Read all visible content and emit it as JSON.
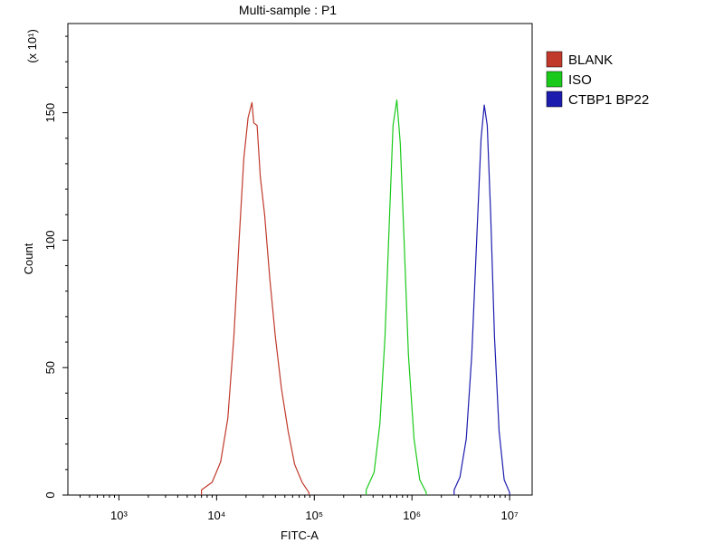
{
  "chart_data": {
    "type": "area",
    "title": "Multi-sample : P1",
    "xlabel": "FITC-A",
    "ylabel": "Count",
    "y_multiplier": "(x 10¹)",
    "x_scale": "log",
    "xlim": [
      300,
      17000000
    ],
    "ylim": [
      0,
      185
    ],
    "x_ticks": [
      {
        "label": "10³",
        "value": 1000
      },
      {
        "label": "10⁴",
        "value": 10000
      },
      {
        "label": "10⁵",
        "value": 100000
      },
      {
        "label": "10⁶",
        "value": 1000000
      },
      {
        "label": "10⁷",
        "value": 10000000
      }
    ],
    "y_ticks": [
      0,
      50,
      100,
      150
    ],
    "legend_position": "top-right",
    "series": [
      {
        "name": "BLANK",
        "color": "#c0392b",
        "x": [
          7000,
          9000,
          11000,
          13000,
          15000,
          17000,
          19000,
          21000,
          23000,
          24000,
          26000,
          28000,
          31000,
          35000,
          40000,
          46000,
          54000,
          63000,
          75000,
          88000
        ],
        "y": [
          2,
          5,
          13,
          30,
          62,
          100,
          132,
          148,
          154,
          146,
          145,
          125,
          110,
          85,
          62,
          42,
          25,
          12,
          5,
          1
        ]
      },
      {
        "name": "ISO",
        "color": "#1aca1a",
        "x": [
          340000,
          410000,
          470000,
          530000,
          590000,
          640000,
          700000,
          760000,
          830000,
          920000,
          1050000,
          1200000,
          1400000
        ],
        "y": [
          2,
          9,
          28,
          62,
          110,
          145,
          155,
          138,
          100,
          55,
          22,
          6,
          1
        ]
      },
      {
        "name": "CTBP1 BP22",
        "color": "#1c1cae",
        "x": [
          2700000,
          3100000,
          3600000,
          4100000,
          4600000,
          5100000,
          5500000,
          5900000,
          6400000,
          7000000,
          7800000,
          8800000,
          10000000
        ],
        "y": [
          2,
          7,
          22,
          55,
          100,
          140,
          153,
          145,
          110,
          62,
          25,
          6,
          1
        ]
      }
    ]
  }
}
